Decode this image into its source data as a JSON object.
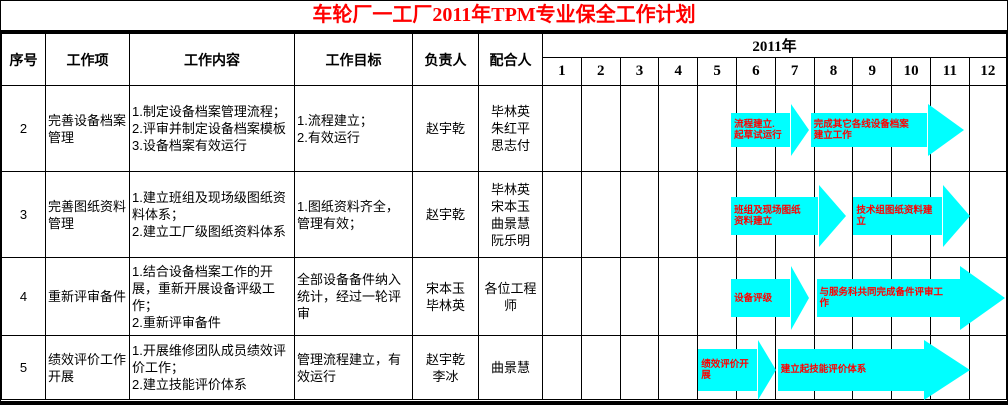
{
  "title": "车轮厂一工厂2011年TPM专业保全工作计划",
  "colors": {
    "title_text": "#FF0000",
    "arrow_fill": "#00FFFF",
    "arrow_text": "#FF0000",
    "grid": "#000000",
    "background": "#FFFFFF"
  },
  "header": {
    "cols": [
      "序号",
      "工作项",
      "工作内容",
      "工作目标",
      "负责人",
      "配合人"
    ],
    "year": "2011年",
    "months": [
      "1",
      "2",
      "3",
      "4",
      "5",
      "6",
      "7",
      "8",
      "9",
      "10",
      "11",
      "12"
    ]
  },
  "rows": [
    {
      "no": "2",
      "item": "完善设备档案管理",
      "content": "1.制定设备档案管理流程；\n2.评审并制定设备档案模板\n3.设备档案有效运行",
      "goal": "1.流程建立；\n2.有效运行",
      "owner": "赵宇乾",
      "support": "毕林英\n朱红平\n思志付"
    },
    {
      "no": "3",
      "item": "完善图纸资料管理",
      "content": "1.建立班组及现场级图纸资料体系；\n2.建立工厂级图纸资料体系",
      "goal": "1.图纸资料齐全，管理有效；",
      "owner": "赵宇乾",
      "support": "毕林英\n宋本玉\n曲景慧\n阮乐明"
    },
    {
      "no": "4",
      "item": "重新评审备件",
      "content": "1.结合设备档案工作的开展，重新开展设备评级工作；\n2.重新评审备件",
      "goal": "全部设备备件纳入统计，经过一轮评审",
      "owner": "宋本玉\n毕林英",
      "support": "各位工程师"
    },
    {
      "no": "5",
      "item": "绩效评价工作开展",
      "content": "1.开展维修团队成员绩效评价工作；\n2.建立技能评价体系",
      "goal": "管理流程建立，有效运行",
      "owner": "赵宇乾\n李冰",
      "support": "曲景慧"
    }
  ],
  "gantt": {
    "year": "2011",
    "arrows": [
      {
        "row": 0,
        "m_start": 4.85,
        "m_end": 6.85,
        "label": "流程建立.\n起草试运行"
      },
      {
        "row": 0,
        "m_start": 6.9,
        "m_end": 10.85,
        "label": "完成其它各线设备档案\n建立工作"
      },
      {
        "row": 1,
        "m_start": 4.85,
        "m_end": 7.8,
        "label": "班组及现场图纸\n资料建立"
      },
      {
        "row": 1,
        "m_start": 8.0,
        "m_end": 11.0,
        "label": "技术组图纸资料建\n立"
      },
      {
        "row": 2,
        "m_start": 4.85,
        "m_end": 6.85,
        "label": "设备评级"
      },
      {
        "row": 2,
        "m_start": 7.05,
        "m_end": 11.9,
        "label": "与服务科共同完成备件评审工\n作"
      },
      {
        "row": 3,
        "m_start": 4.0,
        "m_end": 6.0,
        "label": "绩效评价开\n展"
      },
      {
        "row": 3,
        "m_start": 6.05,
        "m_end": 11.0,
        "label": "建立起技能评价体系"
      }
    ]
  }
}
